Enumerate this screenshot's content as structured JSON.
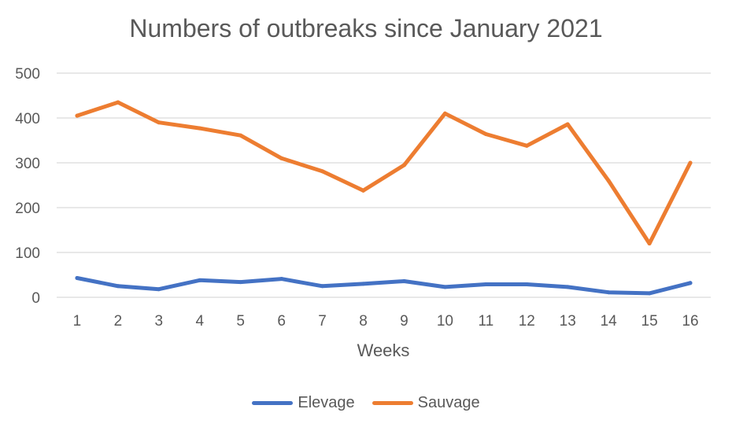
{
  "chart_data": {
    "type": "line",
    "title": "Numbers of outbreaks since January 2021",
    "xlabel": "Weeks",
    "ylabel": "",
    "ylim": [
      0,
      500
    ],
    "yticks": [
      0,
      100,
      200,
      300,
      400,
      500
    ],
    "categories": [
      "1",
      "2",
      "3",
      "4",
      "5",
      "6",
      "7",
      "8",
      "9",
      "10",
      "11",
      "12",
      "13",
      "14",
      "15",
      "16"
    ],
    "grid": "horizontal",
    "legend_position": "bottom",
    "series": [
      {
        "name": "Elevage",
        "color": "#4472c4",
        "values": [
          43,
          25,
          18,
          38,
          34,
          41,
          25,
          30,
          36,
          23,
          29,
          29,
          23,
          11,
          9,
          32
        ]
      },
      {
        "name": "Sauvage",
        "color": "#ed7d31",
        "values": [
          405,
          435,
          390,
          377,
          361,
          310,
          281,
          238,
          295,
          410,
          364,
          338,
          386,
          260,
          120,
          300
        ]
      }
    ]
  }
}
